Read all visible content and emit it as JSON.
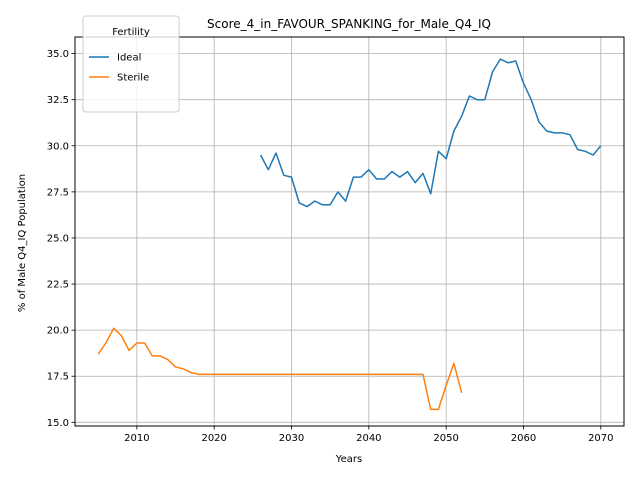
{
  "chart_data": {
    "type": "line",
    "title": "Score_4_in_FAVOUR_SPANKING_for_Male_Q4_IQ",
    "xlabel": "Years",
    "ylabel": "% of Male Q4_IQ Population",
    "xlim": [
      2002,
      2073
    ],
    "ylim": [
      14.8,
      35.9
    ],
    "xticks": [
      2010,
      2020,
      2030,
      2040,
      2050,
      2060,
      2070
    ],
    "yticks": [
      15.0,
      17.5,
      20.0,
      22.5,
      25.0,
      27.5,
      30.0,
      32.5,
      35.0
    ],
    "grid": true,
    "legend": {
      "title": "Fertility",
      "placement": "top-left"
    },
    "series": [
      {
        "name": "Ideal",
        "color": "#1f77b4",
        "x": [
          2026,
          2027,
          2028,
          2029,
          2030,
          2031,
          2032,
          2033,
          2034,
          2035,
          2036,
          2037,
          2038,
          2039,
          2040,
          2041,
          2042,
          2043,
          2044,
          2045,
          2046,
          2047,
          2048,
          2049,
          2050,
          2051,
          2052,
          2053,
          2054,
          2055,
          2056,
          2057,
          2058,
          2059,
          2060,
          2061,
          2062,
          2063,
          2064,
          2065,
          2066,
          2067,
          2068,
          2069,
          2070
        ],
        "y": [
          29.5,
          28.7,
          29.6,
          28.4,
          28.3,
          26.9,
          26.7,
          27.0,
          26.8,
          26.8,
          27.5,
          27.0,
          28.3,
          28.3,
          28.7,
          28.2,
          28.2,
          28.6,
          28.3,
          28.6,
          28.0,
          28.5,
          27.4,
          29.7,
          29.3,
          30.8,
          31.6,
          32.7,
          32.5,
          32.5,
          34.0,
          34.7,
          34.5,
          34.6,
          33.4,
          32.5,
          31.3,
          30.8,
          30.7,
          30.7,
          30.6,
          29.8,
          29.7,
          29.5,
          30.0
        ]
      },
      {
        "name": "Sterile",
        "color": "#ff7f0e",
        "x": [
          2005,
          2006,
          2007,
          2008,
          2009,
          2010,
          2011,
          2012,
          2013,
          2014,
          2015,
          2016,
          2017,
          2018,
          2019,
          2020,
          2025,
          2030,
          2035,
          2040,
          2045,
          2046,
          2047,
          2048,
          2049,
          2050,
          2051,
          2052
        ],
        "y": [
          18.7,
          19.3,
          20.1,
          19.7,
          18.9,
          19.3,
          19.3,
          18.6,
          18.6,
          18.4,
          18.0,
          17.9,
          17.7,
          17.6,
          17.6,
          17.6,
          17.6,
          17.6,
          17.6,
          17.6,
          17.6,
          17.6,
          17.6,
          15.7,
          15.7,
          17.0,
          18.2,
          16.6
        ]
      }
    ]
  }
}
